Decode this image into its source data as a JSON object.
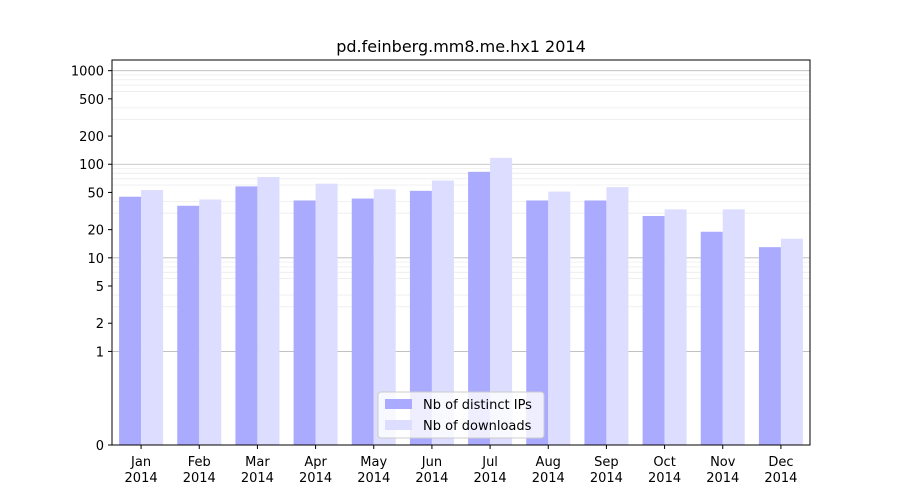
{
  "chart_data": {
    "type": "bar",
    "title": "pd.feinberg.mm8.me.hx1 2014",
    "xlabel": "",
    "ylabel": "",
    "y_scale": "symlog",
    "ylim": [
      0,
      1300
    ],
    "y_ticks": [
      0,
      1,
      2,
      5,
      10,
      20,
      50,
      100,
      200,
      500,
      1000
    ],
    "y_tick_labels": [
      "0",
      "1",
      "2",
      "5",
      "10",
      "20",
      "50",
      "100",
      "200",
      "500",
      "1000"
    ],
    "categories": [
      "Jan",
      "Feb",
      "Mar",
      "Apr",
      "May",
      "Jun",
      "Jul",
      "Aug",
      "Sep",
      "Oct",
      "Nov",
      "Dec"
    ],
    "category_year": "2014",
    "grid": true,
    "legend_position": "bottom-center",
    "series": [
      {
        "name": "Nb of distinct IPs",
        "color": "#aaaaff",
        "values": [
          45,
          36,
          58,
          41,
          43,
          52,
          83,
          41,
          41,
          28,
          19,
          13
        ]
      },
      {
        "name": "Nb of downloads",
        "color": "#ddddff",
        "values": [
          53,
          42,
          73,
          62,
          54,
          67,
          117,
          51,
          57,
          33,
          33,
          16
        ]
      }
    ]
  }
}
